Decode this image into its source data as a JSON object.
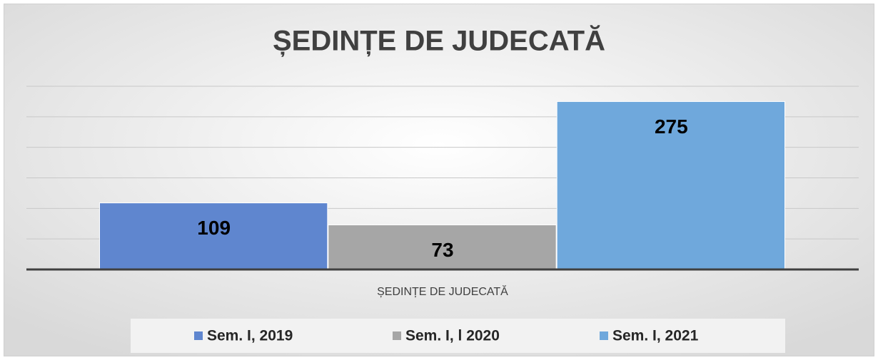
{
  "chart_data": {
    "type": "bar",
    "title": "ȘEDINȚE DE JUDECATĂ",
    "categories": [
      "ȘEDINȚE DE JUDECATĂ"
    ],
    "series": [
      {
        "name": "Sem. I, 2019",
        "color": "#5f86cf",
        "values": [
          109
        ]
      },
      {
        "name": "Sem. I, l 2020",
        "color": "#a6a6a6",
        "values": [
          73
        ]
      },
      {
        "name": "Sem. I, 2021",
        "color": "#6fa8dc",
        "values": [
          275
        ]
      }
    ],
    "ylim": [
      0,
      300
    ],
    "yticks": [
      0,
      50,
      100,
      150,
      200,
      250,
      300
    ],
    "grid": true,
    "legend": "bottom"
  }
}
